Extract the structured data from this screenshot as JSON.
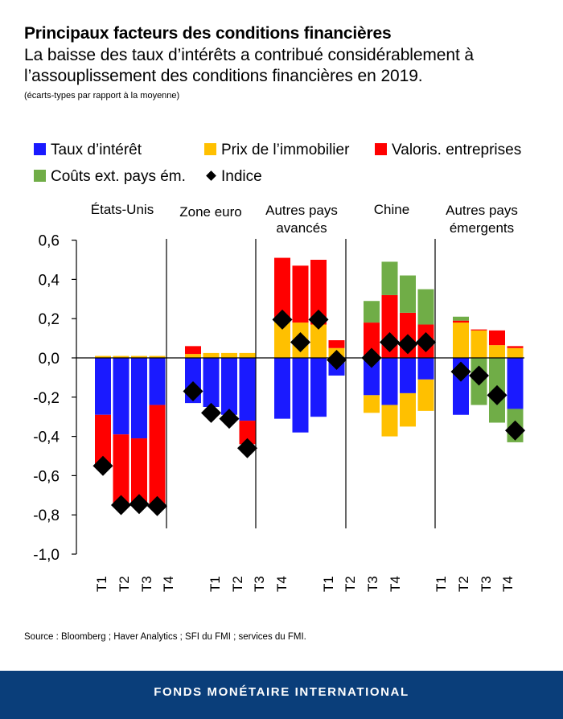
{
  "title": "Principaux facteurs des conditions financières",
  "subtitle": "La baisse des taux d’intérêts a contribué considérablement à l’assouplissement des conditions financières en 2019.",
  "unit_note": "(écarts-types par rapport à la moyenne)",
  "source": "Source : Bloomberg ; Haver Analytics ; SFI du FMI ; services du FMI.",
  "footer": "FONDS MONÉTAIRE INTERNATIONAL",
  "colors": {
    "taux": "#1a1aff",
    "immobilier": "#ffc000",
    "valoris": "#ff0000",
    "couts": "#70ad47",
    "indice": "#000000"
  },
  "chart_data": {
    "type": "bar",
    "stacked": true,
    "ylim": [
      -1.0,
      0.6
    ],
    "yticks": [
      "0,6",
      "0,4",
      "0,2",
      "0,0",
      "-0,2",
      "-0,4",
      "-0,6",
      "-0,8",
      "-1,0"
    ],
    "ytick_values": [
      0.6,
      0.4,
      0.2,
      0.0,
      -0.2,
      -0.4,
      -0.6,
      -0.8,
      -1.0
    ],
    "legend_position": "top",
    "legend": [
      {
        "key": "taux",
        "label": "Taux d’intérêt",
        "marker": "square"
      },
      {
        "key": "immobilier",
        "label": "Prix de l’immobilier",
        "marker": "square"
      },
      {
        "key": "valoris",
        "label": "Valoris. entreprises",
        "marker": "square"
      },
      {
        "key": "couts",
        "label": "Coûts ext. pays ém.",
        "marker": "square"
      },
      {
        "key": "indice",
        "label": "Indice",
        "marker": "diamond"
      }
    ],
    "groups": [
      {
        "label": "États-Unis",
        "label_lines": [
          "États-Unis"
        ],
        "categories": [
          "T1",
          "T2",
          "T3",
          "T4"
        ],
        "taux": [
          -0.29,
          -0.39,
          -0.41,
          -0.24
        ],
        "immobilier": [
          0.01,
          0.01,
          0.01,
          0.01
        ],
        "valoris": [
          -0.26,
          -0.36,
          -0.34,
          -0.52
        ],
        "couts": [
          0,
          0,
          0,
          0
        ],
        "indice": [
          -0.55,
          -0.75,
          -0.745,
          -0.755
        ]
      },
      {
        "label": "Zone euro",
        "label_lines": [
          "Zone euro"
        ],
        "categories": [
          "T1",
          "T2",
          "T3",
          "T4"
        ],
        "taux": [
          -0.23,
          -0.25,
          -0.29,
          -0.32
        ],
        "immobilier": [
          0.02,
          0.025,
          0.025,
          0.025
        ],
        "valoris": [
          0.04,
          0,
          0,
          -0.12
        ],
        "couts": [
          0,
          0,
          0,
          0
        ],
        "indice": [
          -0.17,
          -0.28,
          -0.31,
          -0.46
        ]
      },
      {
        "label": "Autres pays avancés",
        "label_lines": [
          "Autres pays",
          "avancés"
        ],
        "categories": [
          "T1",
          "T2",
          "T3",
          "T4"
        ],
        "taux": [
          -0.31,
          -0.38,
          -0.3,
          -0.09
        ],
        "immobilier": [
          0.19,
          0.18,
          0.17,
          0.05
        ],
        "valoris": [
          0.32,
          0.29,
          0.33,
          0.04
        ],
        "couts": [
          0,
          0,
          0,
          0
        ],
        "indice": [
          0.195,
          0.08,
          0.195,
          -0.01
        ]
      },
      {
        "label": "Chine",
        "label_lines": [
          "Chine"
        ],
        "categories": [
          "T1",
          "T2",
          "T3",
          "T4"
        ],
        "taux": [
          -0.19,
          -0.24,
          -0.18,
          -0.11
        ],
        "immobilier": [
          -0.09,
          -0.16,
          -0.17,
          -0.16
        ],
        "valoris": [
          0.18,
          0.32,
          0.23,
          0.17
        ],
        "couts": [
          0.11,
          0.17,
          0.19,
          0.18
        ],
        "indice": [
          0.0,
          0.08,
          0.07,
          0.08
        ]
      },
      {
        "label": "Autres pays émergents",
        "label_lines": [
          "Autres pays",
          "émergents"
        ],
        "categories": [
          "T1",
          "T2",
          "T3",
          "T4"
        ],
        "taux": [
          -0.29,
          0,
          0,
          -0.26
        ],
        "immobilier": [
          0.18,
          0.14,
          0.065,
          0.05
        ],
        "valoris": [
          0.01,
          0.005,
          0.075,
          0.01
        ],
        "couts": [
          0.02,
          -0.24,
          -0.33,
          -0.17
        ],
        "indice": [
          -0.07,
          -0.09,
          -0.19,
          -0.37
        ]
      }
    ]
  }
}
